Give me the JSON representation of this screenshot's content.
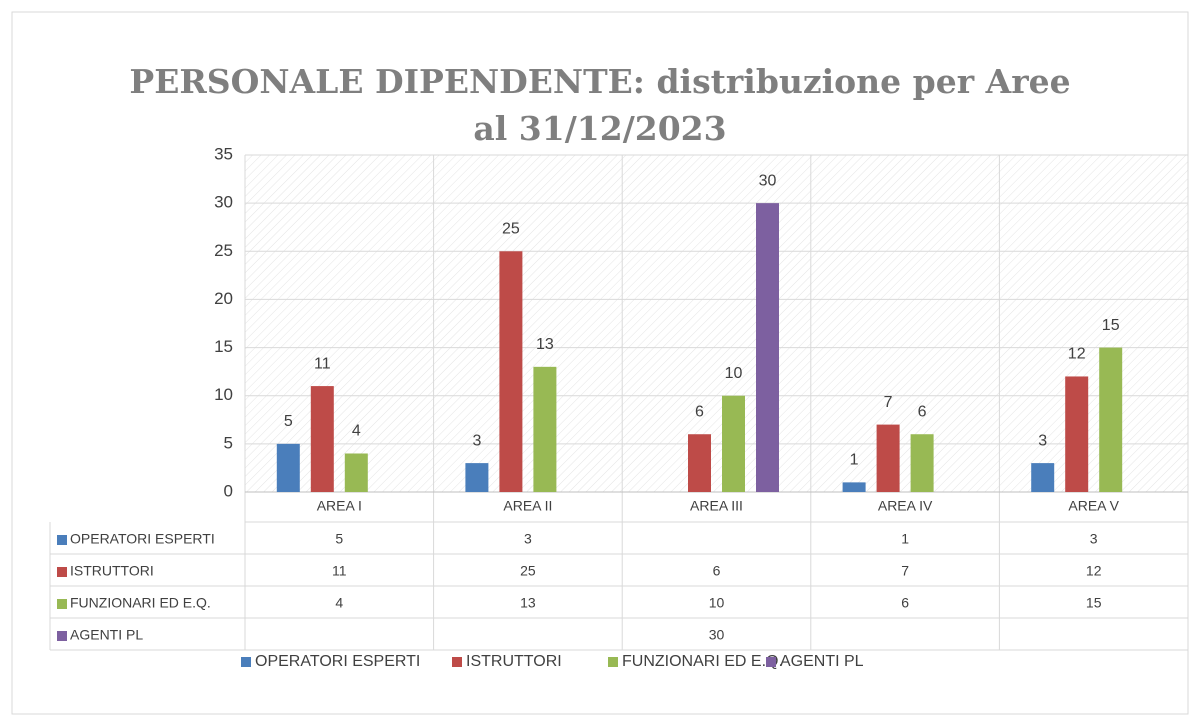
{
  "chart_data": {
    "type": "bar",
    "title": [
      "PERSONALE DIPENDENTE: distribuzione per Aree",
      "al 31/12/2023"
    ],
    "categories": [
      "AREA I",
      "AREA II",
      "AREA III",
      "AREA IV",
      "AREA V"
    ],
    "series": [
      {
        "name": "OPERATORI ESPERTI",
        "color": "#4a7ebb",
        "values": [
          5,
          3,
          null,
          1,
          3
        ]
      },
      {
        "name": "ISTRUTTORI",
        "color": "#be4b48",
        "values": [
          11,
          25,
          6,
          7,
          12
        ]
      },
      {
        "name": "FUNZIONARI ED E.Q.",
        "color": "#98b954",
        "values": [
          4,
          13,
          10,
          6,
          15
        ]
      },
      {
        "name": "AGENTI PL",
        "color": "#7d60a0",
        "values": [
          null,
          null,
          30,
          null,
          null
        ]
      }
    ],
    "ylim": [
      0,
      35
    ],
    "yticks": [
      0,
      5,
      10,
      15,
      20,
      25,
      30,
      35
    ],
    "grid": true,
    "legend": "bottom",
    "data_table": true
  }
}
